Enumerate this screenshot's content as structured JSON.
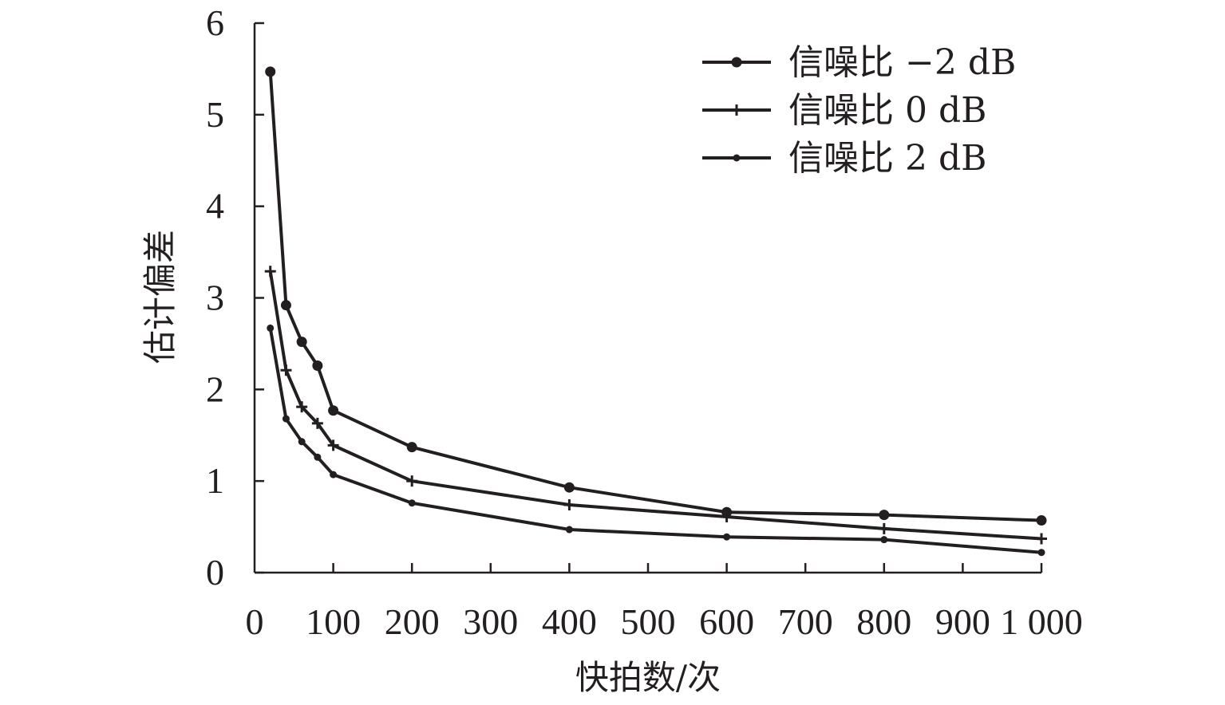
{
  "chart_data": {
    "type": "line",
    "xlabel": "快拍数/次",
    "ylabel": "估计偏差",
    "xlim": [
      0,
      1000
    ],
    "ylim": [
      0,
      6
    ],
    "xticks": [
      0,
      100,
      200,
      300,
      400,
      500,
      600,
      700,
      800,
      900,
      1000
    ],
    "xtick_labels": [
      "0",
      "100",
      "200",
      "300",
      "400",
      "500",
      "600",
      "700",
      "800",
      "900",
      "1 000"
    ],
    "yticks": [
      0,
      1,
      2,
      3,
      4,
      5,
      6
    ],
    "ytick_labels": [
      "0",
      "1",
      "2",
      "3",
      "4",
      "5",
      "6"
    ],
    "grid": false,
    "legend_position": "top-right",
    "series": [
      {
        "name": "信噪比 −2 dB",
        "marker": "large-dot",
        "x": [
          20,
          40,
          60,
          80,
          100,
          200,
          400,
          600,
          800,
          1000
        ],
        "y": [
          5.47,
          2.92,
          2.52,
          2.26,
          1.77,
          1.37,
          0.93,
          0.66,
          0.63,
          0.57
        ]
      },
      {
        "name": "信噪比 0 dB",
        "marker": "plus",
        "x": [
          20,
          40,
          60,
          80,
          100,
          200,
          400,
          600,
          800,
          1000
        ],
        "y": [
          3.29,
          2.21,
          1.81,
          1.63,
          1.39,
          1.0,
          0.74,
          0.61,
          0.48,
          0.37
        ]
      },
      {
        "name": "信噪比 2 dB",
        "marker": "small-dot",
        "x": [
          20,
          40,
          60,
          80,
          100,
          200,
          400,
          600,
          800,
          1000
        ],
        "y": [
          2.67,
          1.68,
          1.43,
          1.26,
          1.07,
          0.76,
          0.47,
          0.39,
          0.36,
          0.22
        ]
      }
    ]
  }
}
